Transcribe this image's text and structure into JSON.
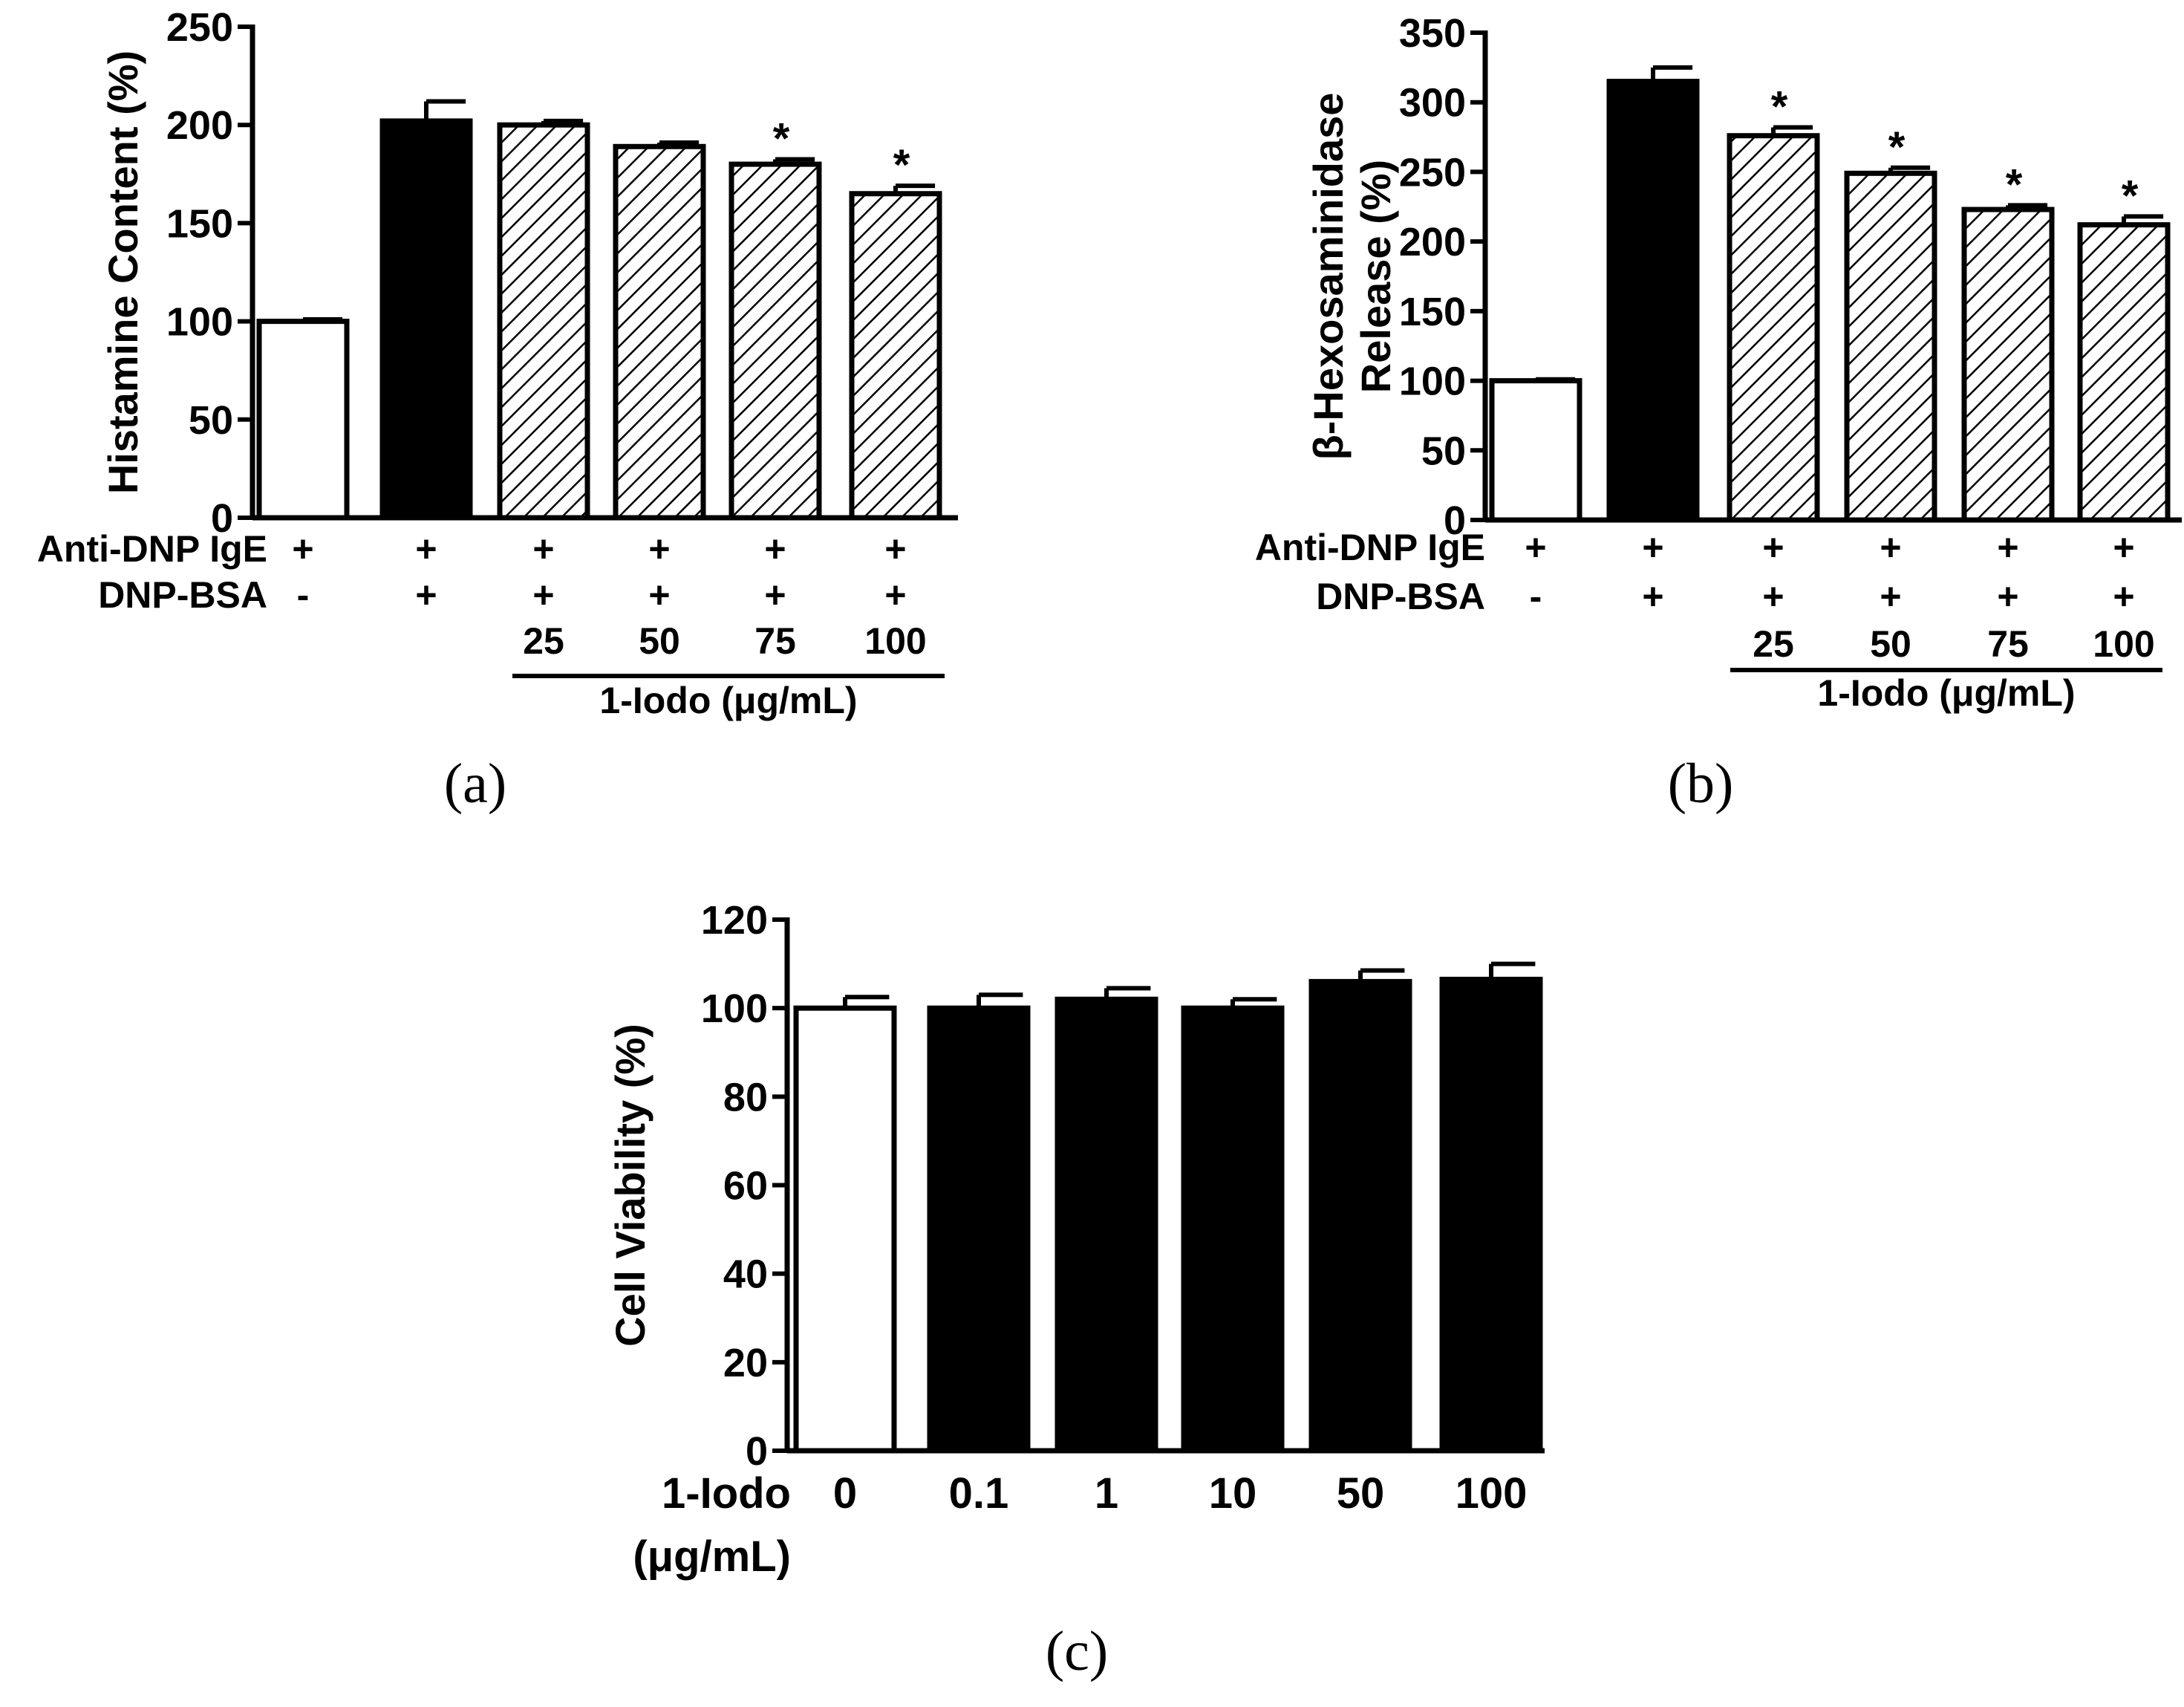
{
  "colors": {
    "axis": "#000000",
    "bar_dark": "#000000",
    "bar_light": "#ffffff",
    "background": "#ffffff"
  },
  "chart_data": [
    {
      "id": "a",
      "type": "bar",
      "panel_label": "(a)",
      "ylabel": "Histamine Content (%)",
      "ylim": [
        0,
        250
      ],
      "yticks": [
        0,
        50,
        100,
        150,
        200,
        250
      ],
      "values": [
        100,
        202,
        200,
        189,
        180,
        165
      ],
      "errors": [
        1,
        10,
        2,
        2,
        2.5,
        4
      ],
      "fills": [
        "white",
        "black",
        "hatch",
        "hatch",
        "hatch",
        "hatch"
      ],
      "significance": [
        "",
        "",
        "",
        "",
        "*",
        "*"
      ],
      "rows": [
        {
          "label": "Anti-DNP IgE",
          "values": [
            "+",
            "+",
            "+",
            "+",
            "+",
            "+"
          ]
        },
        {
          "label": "DNP-BSA",
          "values": [
            "-",
            "+",
            "+",
            "+",
            "+",
            "+"
          ]
        },
        {
          "label": "",
          "values": [
            "",
            "",
            "25",
            "50",
            "75",
            "100"
          ]
        }
      ],
      "group_label": "1-Iodo (μg/mL)"
    },
    {
      "id": "b",
      "type": "bar",
      "panel_label": "(b)",
      "ylabel_lines": [
        "β-Hexosaminidase",
        "Release (%)"
      ],
      "ylim": [
        0,
        350
      ],
      "yticks": [
        0,
        50,
        100,
        150,
        200,
        250,
        300,
        350
      ],
      "values": [
        100,
        315,
        276,
        249,
        223,
        212
      ],
      "errors": [
        1,
        10,
        6,
        4,
        3,
        6
      ],
      "fills": [
        "white",
        "black",
        "hatch",
        "hatch",
        "hatch",
        "hatch"
      ],
      "significance": [
        "",
        "",
        "*",
        "*",
        "*",
        "*"
      ],
      "rows": [
        {
          "label": "Anti-DNP IgE",
          "values": [
            "+",
            "+",
            "+",
            "+",
            "+",
            "+"
          ]
        },
        {
          "label": "DNP-BSA",
          "values": [
            "-",
            "+",
            "+",
            "+",
            "+",
            "+"
          ]
        },
        {
          "label": "",
          "values": [
            "",
            "",
            "25",
            "50",
            "75",
            "100"
          ]
        }
      ],
      "group_label": "1-Iodo (μg/mL)"
    },
    {
      "id": "c",
      "type": "bar",
      "panel_label": "(c)",
      "ylabel": "Cell Viability (%)",
      "ylim": [
        0,
        120
      ],
      "yticks": [
        0,
        20,
        40,
        60,
        80,
        100,
        120
      ],
      "categories": [
        "0",
        "0.1",
        "1",
        "10",
        "50",
        "100"
      ],
      "values": [
        100,
        100,
        102,
        100,
        106,
        106.5
      ],
      "errors": [
        2.5,
        3,
        2.5,
        2,
        2.5,
        3.5
      ],
      "fills": [
        "white",
        "black",
        "black",
        "black",
        "black",
        "black"
      ],
      "xlabel_lines": [
        "1-Iodo",
        "(μg/mL)"
      ]
    }
  ]
}
